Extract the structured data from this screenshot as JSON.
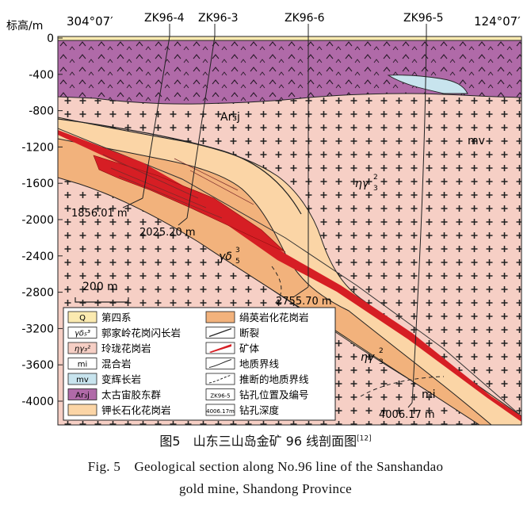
{
  "figure": {
    "header": {
      "ylabel": "标高/m",
      "azimuth_left": "304°07′",
      "azimuth_right": "124°07′"
    },
    "depth_ticks": [
      "0",
      "-400",
      "-800",
      "-1200",
      "-1600",
      "-2000",
      "-2400",
      "-2800",
      "-3200",
      "-3600",
      "-4000"
    ],
    "boreholes": [
      {
        "name": "ZK96-4",
        "depth": "1856.01 m"
      },
      {
        "name": "ZK96-3",
        "depth": "2025.20 m"
      },
      {
        "name": "ZK96-6",
        "depth": "2755.70 m"
      },
      {
        "name": "ZK96-5",
        "depth": "4006.17 m"
      }
    ],
    "unit_labels": {
      "ar": "Ar₃j",
      "mv": "mv",
      "eta_upper": "ηγ",
      "gamma_delta": "γδ",
      "eta_lower": "ηγ",
      "mi": "mi",
      "sup3": "3",
      "sub3": "3",
      "sub5": "5",
      "sup2": "2"
    },
    "scale_bar": "200 m",
    "legend": [
      {
        "sym": "Q",
        "label": "第四系"
      },
      {
        "sym": "γδ₅³",
        "label": "郭家岭花岗闪长岩"
      },
      {
        "sym": "ηγ₃²",
        "label": "玲珑花岗岩"
      },
      {
        "sym": "mi",
        "label": "混合岩"
      },
      {
        "sym": "mv",
        "label": "变辉长岩"
      },
      {
        "sym": "Ar₃j",
        "label": "太古宙胶东群"
      },
      {
        "sym": "",
        "label": "钾长石化花岗岩"
      },
      {
        "sym": "",
        "label": "绢英岩化花岗岩"
      },
      {
        "sym": "",
        "label": "断裂"
      },
      {
        "sym": "",
        "label": "矿体"
      },
      {
        "sym": "",
        "label": "地质界线"
      },
      {
        "sym": "",
        "label": "推断的地质界线"
      },
      {
        "sym": "ZK96-5",
        "label": "钻孔位置及编号"
      },
      {
        "sym": "4006.17m",
        "label": "钻孔深度"
      }
    ]
  },
  "caption": {
    "cn": "图5　山东三山岛金矿 96 线剖面图",
    "cn_ref": "[12]",
    "en_line1": "Fig. 5　Geological section along No.96 line of the Sanshandao",
    "en_line2": "gold mine, Shandong Province"
  },
  "colors": {
    "ar_purple": "#b06aa8",
    "granite_pink": "#f6cfc5",
    "sericite_orange": "#f2b27c",
    "kfeldspar": "#fbd5a6",
    "ore_red": "#d61e24",
    "mv_blue": "#c8e4ee",
    "quaternary": "#fbeab0"
  }
}
